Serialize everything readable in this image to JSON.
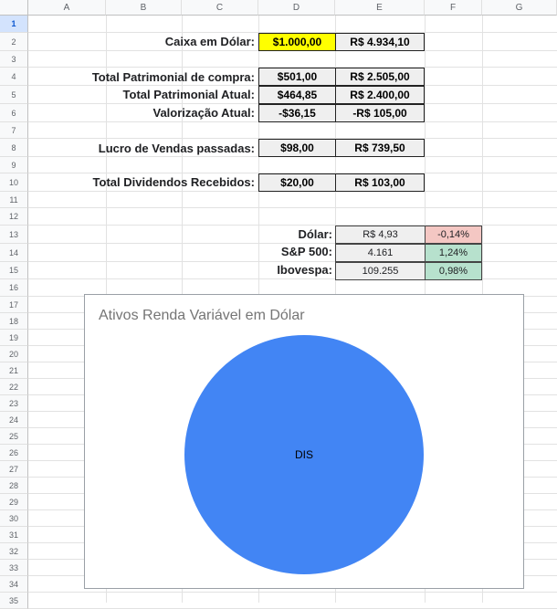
{
  "columns": [
    "A",
    "B",
    "C",
    "D",
    "E",
    "F",
    "G"
  ],
  "rows": [
    "1",
    "2",
    "3",
    "4",
    "5",
    "6",
    "7",
    "8",
    "9",
    "10",
    "11",
    "12",
    "13",
    "14",
    "15",
    "16",
    "17",
    "18",
    "19",
    "20",
    "21",
    "22",
    "23",
    "24",
    "25",
    "26",
    "27",
    "28",
    "29",
    "30",
    "31",
    "32",
    "33",
    "34",
    "35"
  ],
  "summary": [
    {
      "label": "Caixa em Dólar:",
      "usd": "$1.000,00",
      "brl": "R$ 4.934,10"
    },
    {
      "label": "Total Patrimonial de compra:",
      "usd": "$501,00",
      "brl": "R$ 2.505,00"
    },
    {
      "label": "Total Patrimonial Atual:",
      "usd": "$464,85",
      "brl": "R$ 2.400,00"
    },
    {
      "label": "Valorização Atual:",
      "usd": "-$36,15",
      "brl": "-R$ 105,00"
    },
    {
      "label": "Lucro de Vendas passadas:",
      "usd": "$98,00",
      "brl": "R$ 739,50"
    },
    {
      "label": "Total Dividendos Recebidos:",
      "usd": "$20,00",
      "brl": "R$ 103,00"
    }
  ],
  "market": [
    {
      "label": "Dólar:",
      "value": "R$ 4,93",
      "change": "-0,14%"
    },
    {
      "label": "S&P 500:",
      "value": "4.161",
      "change": "1,24%"
    },
    {
      "label": "Ibovespa:",
      "value": "109.255",
      "change": "0,98%"
    }
  ],
  "colors": {
    "highlight": "#ffff00",
    "negative": "#f4c7c3",
    "positive": "#b7e1cd",
    "pie": "#4285f4"
  },
  "chart_data": {
    "type": "pie",
    "title": "Ativos Renda Variável em Dólar",
    "categories": [
      "DIS"
    ],
    "values": [
      100
    ]
  }
}
